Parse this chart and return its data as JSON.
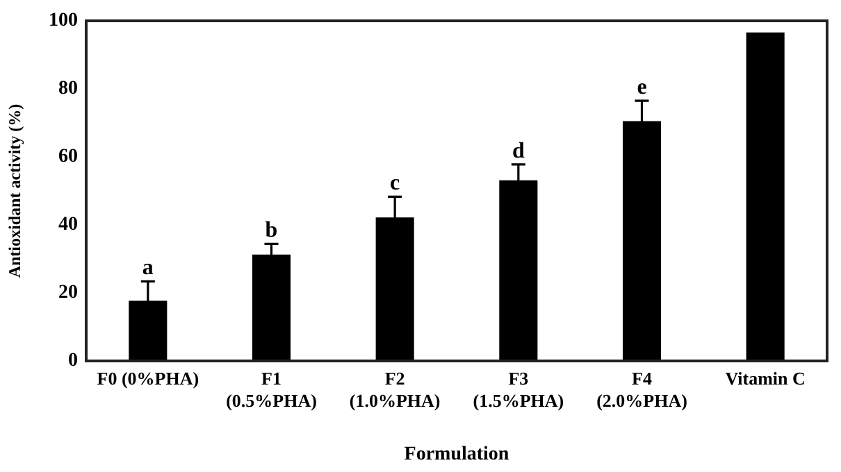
{
  "chart_data": {
    "type": "bar",
    "xlabel": "Formulation",
    "ylabel": "Antioxidant activity (%)",
    "categories": [
      "F0 (0%PHA)",
      "F1\n(0.5%PHA)",
      "F2\n(1.0%PHA)",
      "F3\n(1.5%PHA)",
      "F4\n(2.0%PHA)",
      "Vitamin C"
    ],
    "values": [
      17.7,
      31.3,
      42.2,
      53.1,
      70.5,
      96.6
    ],
    "color": "#000000",
    "errors": [
      5.7,
      3.1,
      6.1,
      4.7,
      6.0,
      null
    ],
    "ylim": [
      0,
      100
    ],
    "yticks": [
      0,
      20,
      40,
      60,
      80,
      100
    ],
    "grid": false,
    "legend": false,
    "annotations": [
      "a",
      "b",
      "c",
      "d",
      "e"
    ]
  }
}
